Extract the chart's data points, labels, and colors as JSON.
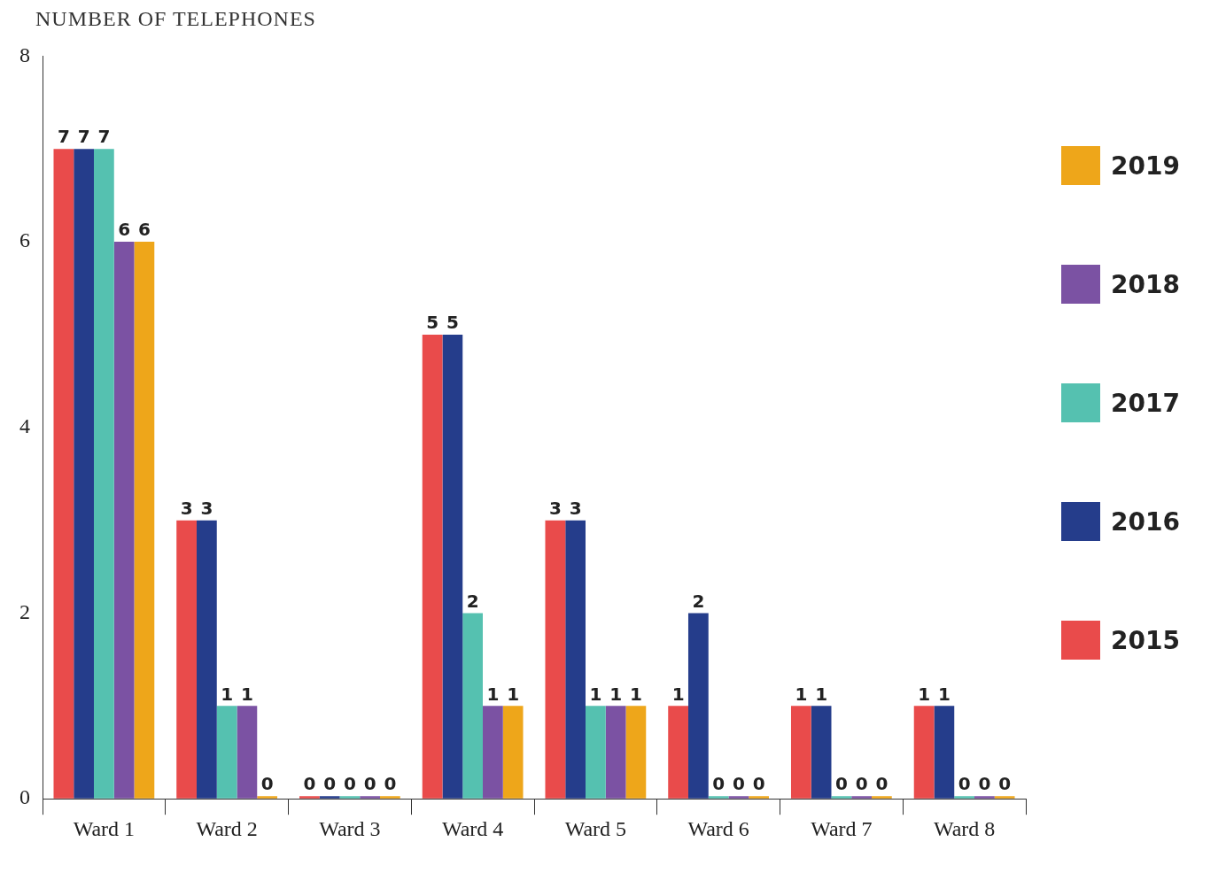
{
  "chart_data": {
    "type": "bar",
    "ylabel": "NUMBER OF TELEPHONES",
    "categories": [
      "Ward 1",
      "Ward 2",
      "Ward 3",
      "Ward 4",
      "Ward 5",
      "Ward 6",
      "Ward 7",
      "Ward 8"
    ],
    "series": [
      {
        "name": "2015",
        "color": "#e94b4b",
        "values": [
          7,
          3,
          0,
          5,
          3,
          1,
          1,
          1
        ]
      },
      {
        "name": "2016",
        "color": "#253d8b",
        "values": [
          7,
          3,
          0,
          5,
          3,
          2,
          1,
          1
        ]
      },
      {
        "name": "2017",
        "color": "#55c1b0",
        "values": [
          7,
          1,
          0,
          2,
          1,
          0,
          0,
          0
        ]
      },
      {
        "name": "2018",
        "color": "#7b52a3",
        "values": [
          6,
          1,
          0,
          1,
          1,
          0,
          0,
          0
        ]
      },
      {
        "name": "2019",
        "color": "#eea61a",
        "values": [
          6,
          0,
          0,
          1,
          1,
          0,
          0,
          0
        ]
      }
    ],
    "ylim": [
      0,
      8
    ],
    "yticks": [
      0,
      2,
      4,
      6,
      8
    ],
    "grid": false,
    "legend": "right",
    "data_labels": true
  }
}
